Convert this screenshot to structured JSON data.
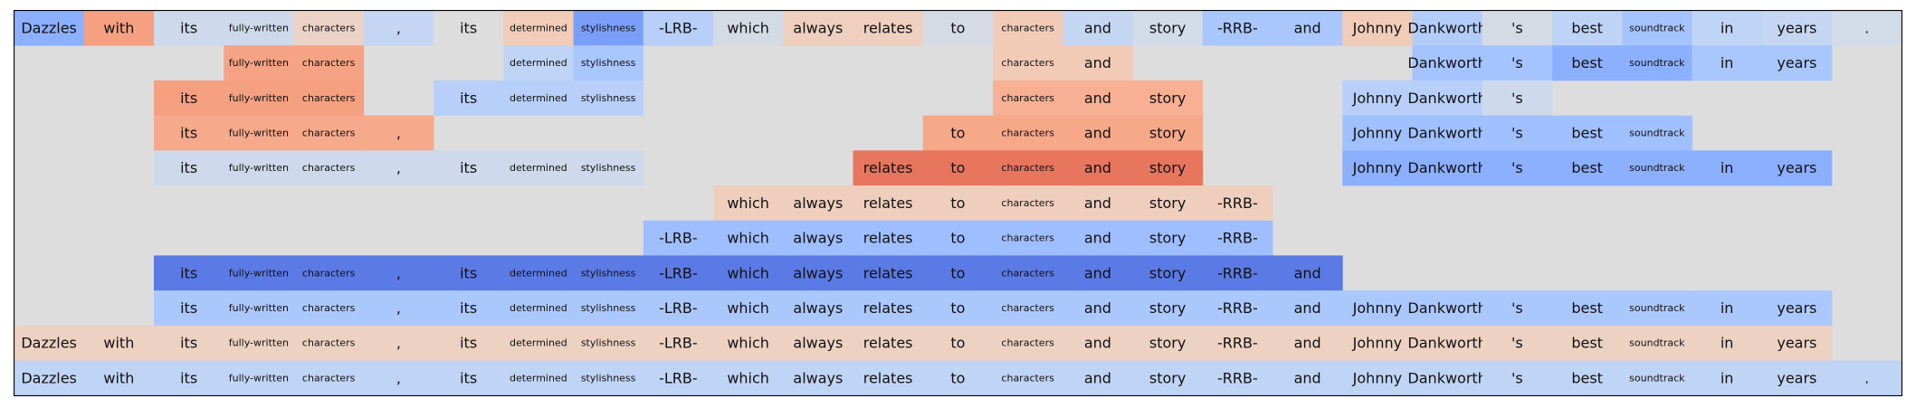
{
  "tokens": [
    "Dazzles",
    "with",
    "its",
    "fully-written",
    "characters",
    ",",
    "its",
    "determined",
    "stylishness",
    "-LRB-",
    "which",
    "always",
    "relates",
    "to",
    "characters",
    "and",
    "story",
    "-RRB-",
    "and",
    "Johnny",
    "Dankworth",
    "'s",
    "best",
    "soundtrack",
    "in",
    "years",
    "."
  ],
  "rows": [
    {
      "start": 0,
      "end": 26,
      "colors": [
        "#8db0fe",
        "#f5a081",
        "#cedaeb",
        "#cedaeb",
        "#ecd3c5",
        "#c5d6f2",
        "#dddddd",
        "#f1ccb8",
        "#7b9ff9",
        "#b7cff9",
        "#d5dbe5",
        "#efcfbf",
        "#efcfbf",
        "#d5dbe5",
        "#f2cbb7",
        "#c5d6f2",
        "#d2dbe8",
        "#aac7fd",
        "#aac7fd",
        "#f1ccb8",
        "#b3cdfb",
        "#d5dbe5",
        "#bfd3f6",
        "#a5c3fe",
        "#c0d4f5",
        "#c5d6f2",
        "#d2dbe8"
      ]
    },
    {
      "start": 3,
      "end": 4,
      "colors": [
        "#f6a385",
        "#f6a385"
      ]
    },
    {
      "start": 7,
      "end": 8,
      "colors": [
        "#c0d4f5",
        "#aac7fd"
      ]
    },
    {
      "start": 14,
      "end": 15,
      "colors": [
        "#f2cbb7",
        "#f2cbb7"
      ]
    },
    {
      "start": 20,
      "end": 25,
      "colors": [
        "#a5c3fe",
        "#a5c3fe",
        "#8db0fe",
        "#8db0fe",
        "#aac7fd",
        "#aac7fd"
      ]
    },
    {
      "start": 2,
      "end": 4,
      "colors": [
        "#f5a081",
        "#f5a081",
        "#f5a081"
      ]
    },
    {
      "start": 6,
      "end": 8,
      "colors": [
        "#b7cff9",
        "#b7cff9",
        "#b7cff9"
      ]
    },
    {
      "start": 14,
      "end": 16,
      "colors": [
        "#f7b093",
        "#f7b093",
        "#f7b093"
      ]
    },
    {
      "start": 19,
      "end": 21,
      "colors": [
        "#b7cff9",
        "#b7cff9",
        "#cedaeb"
      ]
    },
    {
      "start": 2,
      "end": 5,
      "colors": [
        "#f6a98b",
        "#f6a98b",
        "#f6a98b",
        "#f6a98b"
      ]
    },
    {
      "start": 13,
      "end": 16,
      "colors": [
        "#f7a889",
        "#f7a889",
        "#f7a889",
        "#f7a889"
      ]
    },
    {
      "start": 19,
      "end": 23,
      "colors": [
        "#a1c0ff",
        "#a1c0ff",
        "#a1c0ff",
        "#a1c0ff",
        "#a1c0ff"
      ]
    },
    {
      "start": 2,
      "end": 8,
      "colors": [
        "#cedaeb",
        "#cedaeb",
        "#cedaeb",
        "#cedaeb",
        "#cedaeb",
        "#cedaeb",
        "#cedaeb"
      ]
    },
    {
      "start": 12,
      "end": 16,
      "colors": [
        "#e8765e",
        "#e8765e",
        "#e8765e",
        "#e8765e",
        "#e8765e"
      ]
    },
    {
      "start": 19,
      "end": 25,
      "colors": [
        "#8caffe",
        "#8caffe",
        "#8caffe",
        "#8caffe",
        "#8caffe",
        "#8caffe",
        "#8caffe"
      ]
    },
    {
      "start": 10,
      "end": 17,
      "colors": [
        "#efcebd",
        "#efcebd",
        "#efcebd",
        "#efcebd",
        "#efcebd",
        "#efcebd",
        "#efcebd",
        "#efcebd"
      ]
    },
    {
      "start": 9,
      "end": 17,
      "colors": [
        "#9ebeff",
        "#9ebeff",
        "#9ebeff",
        "#9ebeff",
        "#9ebeff",
        "#9ebeff",
        "#9ebeff",
        "#9ebeff",
        "#9ebeff"
      ]
    },
    {
      "start": 2,
      "end": 18,
      "colors": [
        "#5b7ae5",
        "#5b7ae5",
        "#5b7ae5",
        "#5b7ae5",
        "#5b7ae5",
        "#5b7ae5",
        "#5b7ae5",
        "#5b7ae5",
        "#5b7ae5",
        "#5b7ae5",
        "#5b7ae5",
        "#5b7ae5",
        "#5b7ae5",
        "#5b7ae5",
        "#5b7ae5",
        "#5b7ae5",
        "#5b7ae5"
      ]
    },
    {
      "start": 2,
      "end": 25,
      "colors": [
        "#abc8fd",
        "#abc8fd",
        "#abc8fd",
        "#abc8fd",
        "#abc8fd",
        "#abc8fd",
        "#abc8fd",
        "#abc8fd",
        "#abc8fd",
        "#abc8fd",
        "#abc8fd",
        "#abc8fd",
        "#abc8fd",
        "#abc8fd",
        "#abc8fd",
        "#abc8fd",
        "#abc8fd",
        "#abc8fd",
        "#abc8fd",
        "#abc8fd",
        "#abc8fd",
        "#abc8fd",
        "#abc8fd",
        "#abc8fd"
      ]
    },
    {
      "start": 0,
      "end": 25,
      "colors": [
        "#edd1c2",
        "#edd1c2",
        "#edd1c2",
        "#edd1c2",
        "#edd1c2",
        "#edd1c2",
        "#edd1c2",
        "#edd1c2",
        "#edd1c2",
        "#edd1c2",
        "#edd1c2",
        "#edd1c2",
        "#edd1c2",
        "#edd1c2",
        "#edd1c2",
        "#edd1c2",
        "#edd1c2",
        "#edd1c2",
        "#edd1c2",
        "#edd1c2",
        "#edd1c2",
        "#edd1c2",
        "#edd1c2",
        "#edd1c2",
        "#edd1c2",
        "#edd1c2"
      ]
    },
    {
      "start": 0,
      "end": 26,
      "colors": [
        "#c0d4f5",
        "#c0d4f5",
        "#c0d4f5",
        "#c0d4f5",
        "#c0d4f5",
        "#c0d4f5",
        "#c0d4f5",
        "#c0d4f5",
        "#c0d4f5",
        "#c0d4f5",
        "#c0d4f5",
        "#c0d4f5",
        "#c0d4f5",
        "#c0d4f5",
        "#c0d4f5",
        "#c0d4f5",
        "#c0d4f5",
        "#c0d4f5",
        "#c0d4f5",
        "#c0d4f5",
        "#c0d4f5",
        "#c0d4f5",
        "#c0d4f5",
        "#c0d4f5",
        "#c0d4f5",
        "#c0d4f5",
        "#c0d4f5"
      ]
    }
  ],
  "layout_rows": [
    [
      0
    ],
    [
      1,
      2,
      3,
      4
    ],
    [
      5,
      6,
      7,
      8
    ],
    [
      9,
      10,
      11
    ],
    [
      12,
      13,
      14
    ],
    [
      15
    ],
    [
      16
    ],
    [
      17
    ],
    [
      18
    ],
    [
      19
    ],
    [
      20
    ]
  ],
  "small_tokens": [
    "fully-written",
    "characters",
    "determined",
    "stylishness",
    "soundtrack"
  ],
  "colors": {
    "background": "#dddddd",
    "border": "#000000",
    "text": "#111111"
  }
}
